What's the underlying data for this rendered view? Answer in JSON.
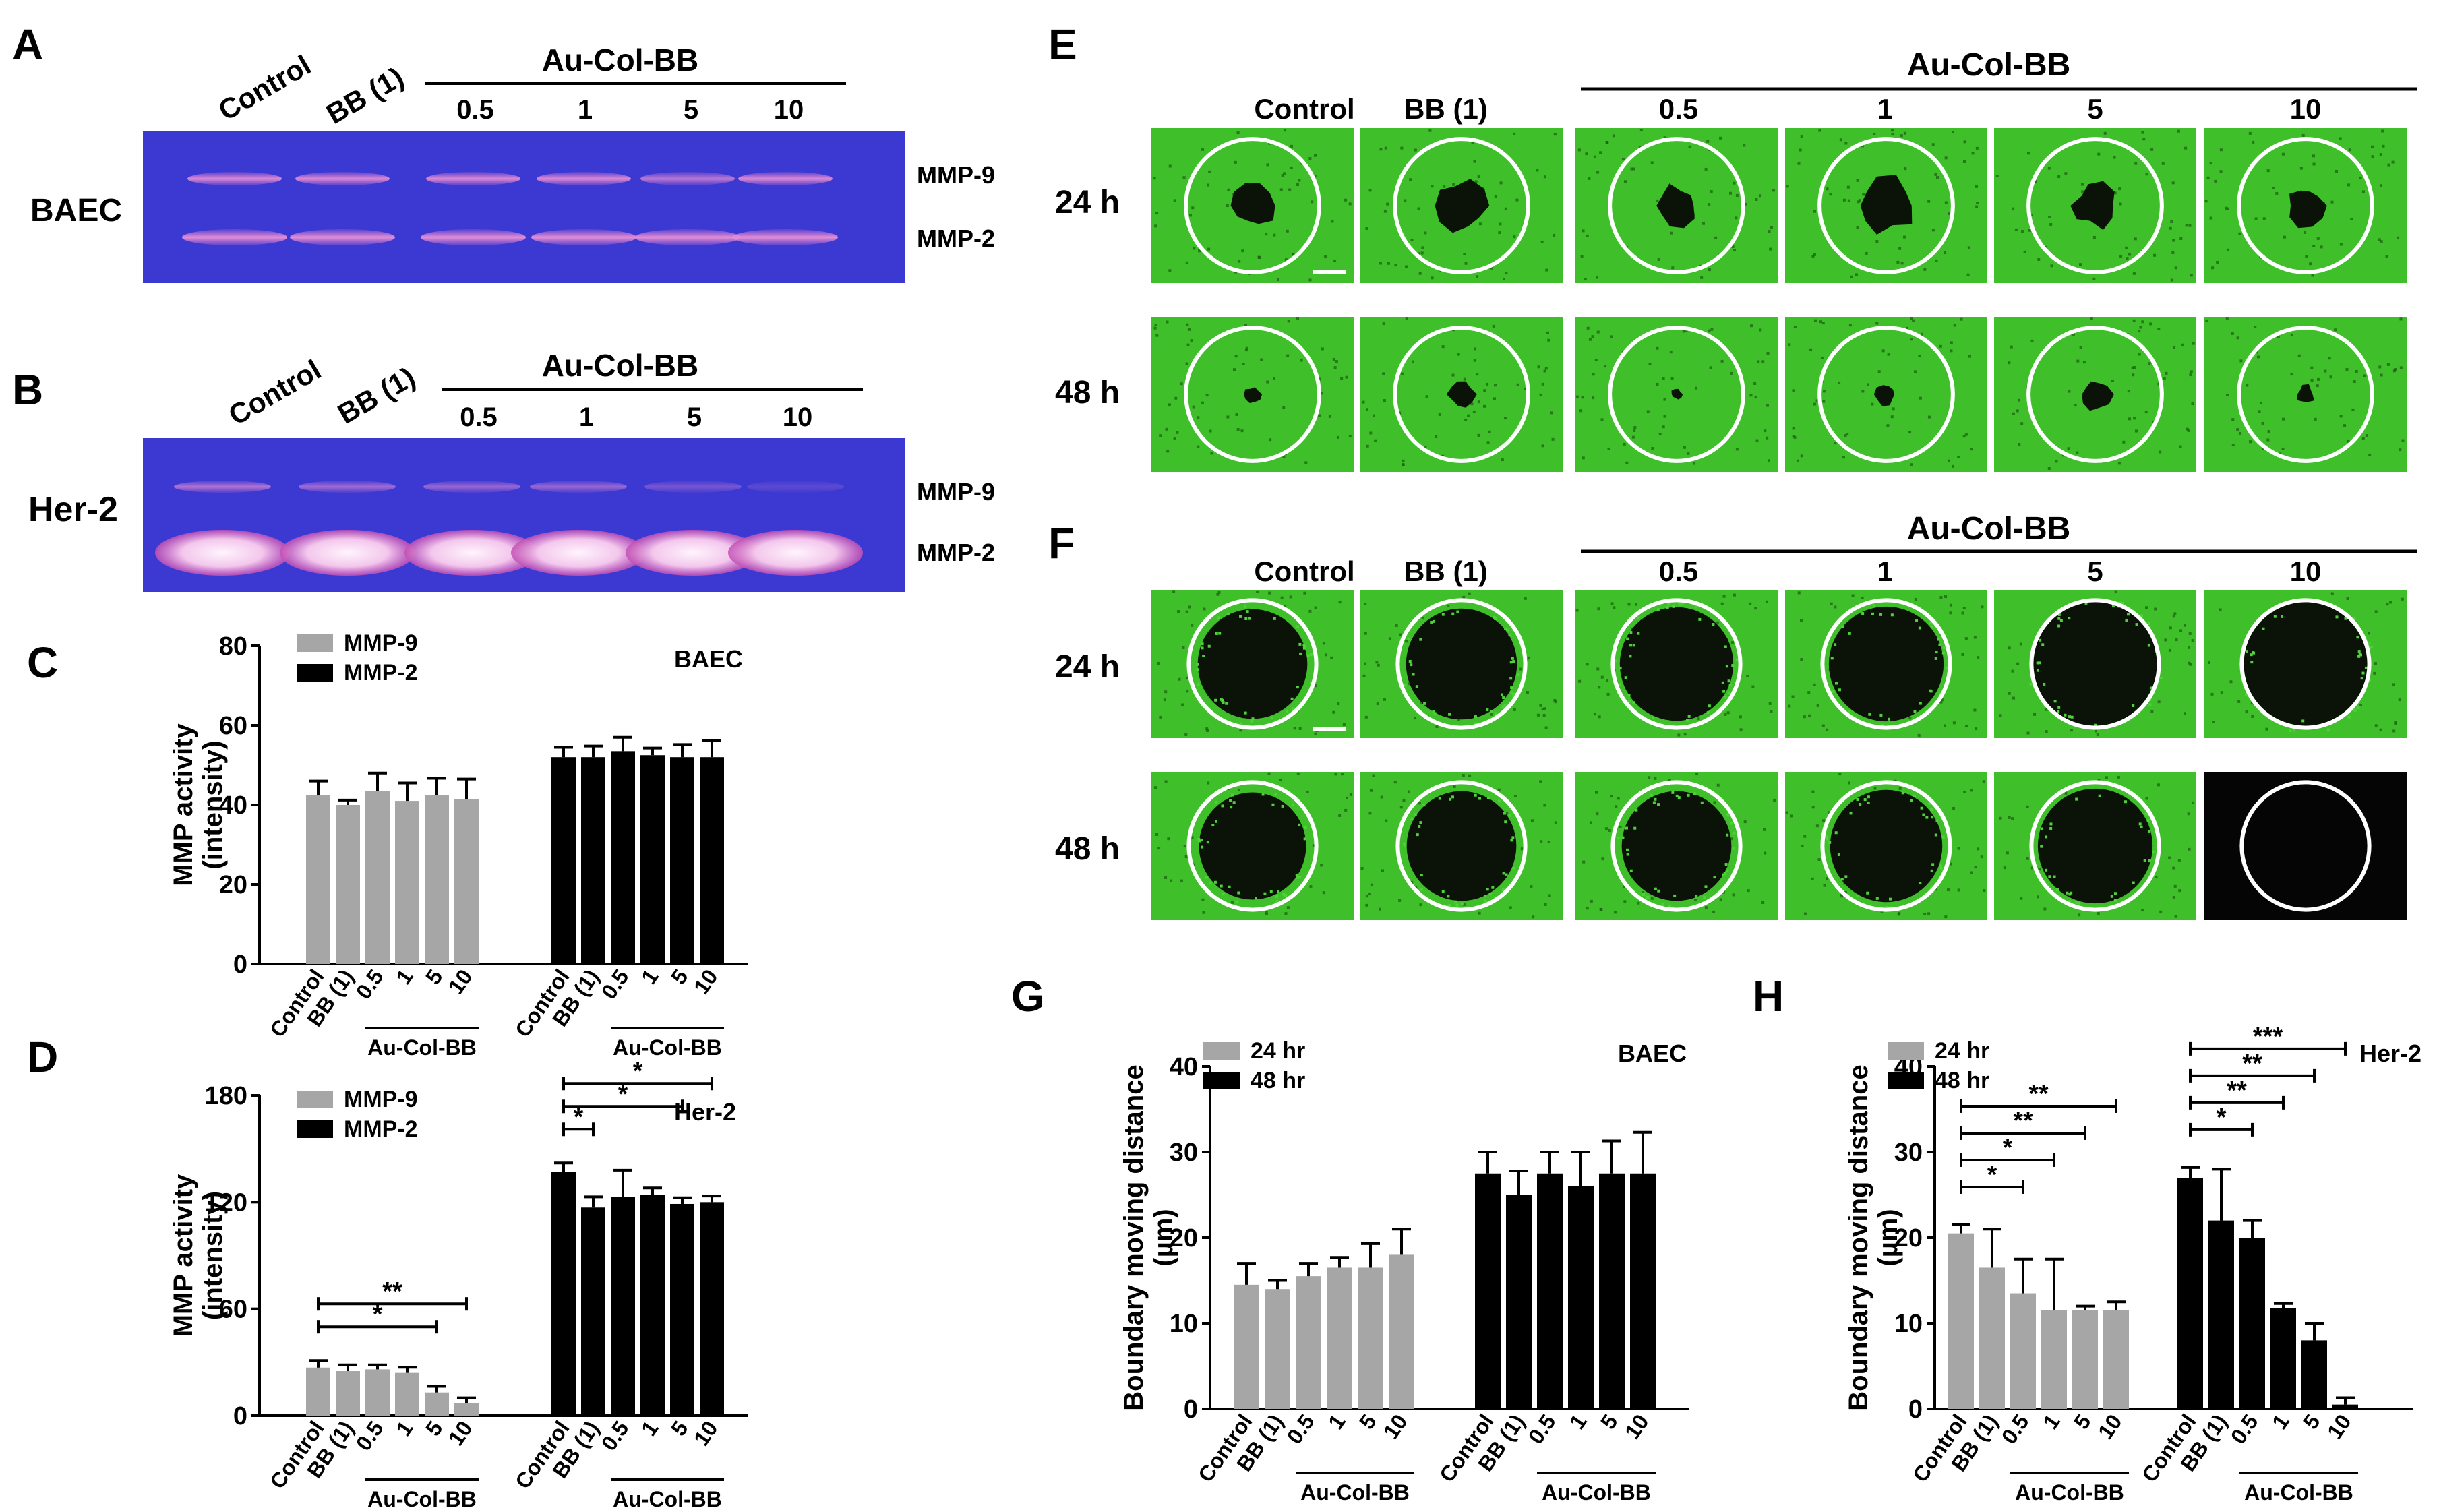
{
  "colors": {
    "gel_bg": "#3c39d2",
    "gel_band": "#d976c8",
    "her2_strong_band": "#f7dcf2",
    "cell_green": "#3fbf2a",
    "cell_dark": "#0f1f0a",
    "mmp9_bar": "#a6a6a6",
    "mmp2_bar": "#000000",
    "bar_24hr": "#a6a6a6",
    "bar_48hr": "#000000"
  },
  "panels": {
    "A": {
      "letter": "A",
      "cell_label": "BAEC",
      "header_group": "Au-Col-BB",
      "lanes": [
        "Control",
        "BB (1)",
        "0.5",
        "1",
        "5",
        "10"
      ],
      "band_labels": [
        "MMP-9",
        "MMP-2"
      ]
    },
    "B": {
      "letter": "B",
      "cell_label": "Her-2",
      "header_group": "Au-Col-BB",
      "lanes": [
        "Control",
        "BB (1)",
        "0.5",
        "1",
        "5",
        "10"
      ],
      "band_labels": [
        "MMP-9",
        "MMP-2"
      ]
    },
    "E": {
      "letter": "E",
      "header_group": "Au-Col-BB",
      "columns": [
        "Control",
        "BB (1)",
        "0.5",
        "1",
        "5",
        "10"
      ],
      "rows": [
        "24 h",
        "48 h"
      ]
    },
    "F": {
      "letter": "F",
      "header_group": "Au-Col-BB",
      "columns": [
        "Control",
        "BB (1)",
        "0.5",
        "1",
        "5",
        "10"
      ],
      "rows": [
        "24 h",
        "48 h"
      ]
    }
  },
  "chart_data": [
    {
      "panel": "C",
      "type": "bar",
      "annotation": "BAEC",
      "ylabel": "MMP activity (intensity)",
      "ylim": [
        0,
        80
      ],
      "yticks": [
        0,
        20,
        40,
        60,
        80
      ],
      "group_label": "Au-Col-BB",
      "categories": [
        "Control",
        "BB (1)",
        "0.5",
        "1",
        "5",
        "10"
      ],
      "legend": [
        "MMP-9",
        "MMP-2"
      ],
      "legend_position": "top-left",
      "series": [
        {
          "name": "MMP-9",
          "values": [
            42.5,
            40,
            43.5,
            41,
            42.5,
            41.5
          ],
          "errors": [
            3.5,
            1.2,
            4.5,
            4.5,
            4.2,
            5
          ]
        },
        {
          "name": "MMP-2",
          "values": [
            52,
            52,
            53.5,
            52.5,
            52,
            52
          ],
          "errors": [
            2.5,
            2.8,
            3.5,
            1.8,
            3.2,
            4.2
          ]
        }
      ],
      "significance": []
    },
    {
      "panel": "D",
      "type": "bar",
      "annotation": "Her-2",
      "ylabel": "MMP activity (intensity)",
      "ylim": [
        0,
        180
      ],
      "yticks": [
        0,
        60,
        120,
        180
      ],
      "group_label": "Au-Col-BB",
      "categories": [
        "Control",
        "BB (1)",
        "0.5",
        "1",
        "5",
        "10"
      ],
      "legend": [
        "MMP-9",
        "MMP-2"
      ],
      "legend_position": "top-left",
      "series": [
        {
          "name": "MMP-9",
          "values": [
            27,
            25,
            26,
            24,
            13,
            7
          ],
          "errors": [
            4,
            3.5,
            2.5,
            3.2,
            3.5,
            3
          ]
        },
        {
          "name": "MMP-2",
          "values": [
            137,
            117,
            123,
            124,
            119,
            120
          ],
          "errors": [
            5,
            6,
            15,
            4,
            3.5,
            3.5
          ]
        }
      ],
      "significance": [
        {
          "series": 0,
          "from": 0,
          "to": 4,
          "label": "*"
        },
        {
          "series": 0,
          "from": 0,
          "to": 5,
          "label": "**"
        },
        {
          "series": 1,
          "from": 0,
          "to": 1,
          "label": "*"
        },
        {
          "series": 1,
          "from": 0,
          "to": 4,
          "label": "*"
        },
        {
          "series": 1,
          "from": 0,
          "to": 5,
          "label": "*"
        }
      ]
    },
    {
      "panel": "G",
      "type": "bar",
      "annotation": "BAEC",
      "ylabel": "Boundary moving distance (µm)",
      "ylim": [
        0,
        40
      ],
      "yticks": [
        0,
        10,
        20,
        30,
        40
      ],
      "group_label": "Au-Col-BB",
      "categories": [
        "Control",
        "BB (1)",
        "0.5",
        "1",
        "5",
        "10"
      ],
      "legend": [
        "24 hr",
        "48 hr"
      ],
      "legend_position": "top-left",
      "series": [
        {
          "name": "24 hr",
          "values": [
            14.5,
            14,
            15.5,
            16.5,
            16.5,
            18
          ],
          "errors": [
            2.5,
            1,
            1.5,
            1.2,
            2.8,
            3
          ]
        },
        {
          "name": "48 hr",
          "values": [
            27.5,
            25,
            27.5,
            26,
            27.5,
            27.5
          ],
          "errors": [
            2.5,
            2.8,
            2.5,
            4,
            3.8,
            4.8
          ]
        }
      ],
      "significance": []
    },
    {
      "panel": "H",
      "type": "bar",
      "annotation": "Her-2",
      "ylabel": "Boundary moving distance (µm)",
      "ylim": [
        0,
        40
      ],
      "yticks": [
        0,
        10,
        20,
        30,
        40
      ],
      "group_label": "Au-Col-BB",
      "categories": [
        "Control",
        "BB (1)",
        "0.5",
        "1",
        "5",
        "10"
      ],
      "legend": [
        "24 hr",
        "48 hr"
      ],
      "legend_position": "top-left",
      "series": [
        {
          "name": "24 hr",
          "values": [
            20.5,
            16.5,
            13.5,
            11.5,
            11.5,
            11.5
          ],
          "errors": [
            1,
            4.5,
            4,
            6,
            0.5,
            1
          ]
        },
        {
          "name": "48 hr",
          "values": [
            27,
            22,
            20,
            11.8,
            8,
            0.5
          ],
          "errors": [
            1.2,
            6,
            2,
            0.5,
            2,
            0.8
          ]
        }
      ],
      "significance": [
        {
          "series": 0,
          "from": 0,
          "to": 2,
          "label": "*"
        },
        {
          "series": 0,
          "from": 0,
          "to": 3,
          "label": "*"
        },
        {
          "series": 0,
          "from": 0,
          "to": 4,
          "label": "**"
        },
        {
          "series": 0,
          "from": 0,
          "to": 5,
          "label": "**"
        },
        {
          "series": 1,
          "from": 0,
          "to": 2,
          "label": "*"
        },
        {
          "series": 1,
          "from": 0,
          "to": 3,
          "label": "**"
        },
        {
          "series": 1,
          "from": 0,
          "to": 4,
          "label": "**"
        },
        {
          "series": 1,
          "from": 0,
          "to": 5,
          "label": "***"
        }
      ]
    }
  ],
  "wound": {
    "E": {
      "24 h": [
        0.34,
        0.38,
        0.32,
        0.42,
        0.33,
        0.31
      ],
      "48 h": [
        0.12,
        0.2,
        0.08,
        0.16,
        0.24,
        0.14
      ]
    },
    "F": {
      "24 h": [
        0.86,
        0.87,
        0.89,
        0.9,
        0.98,
        0.97
      ],
      "48 h": [
        0.84,
        0.86,
        0.86,
        0.88,
        0.9,
        1.0
      ]
    }
  }
}
